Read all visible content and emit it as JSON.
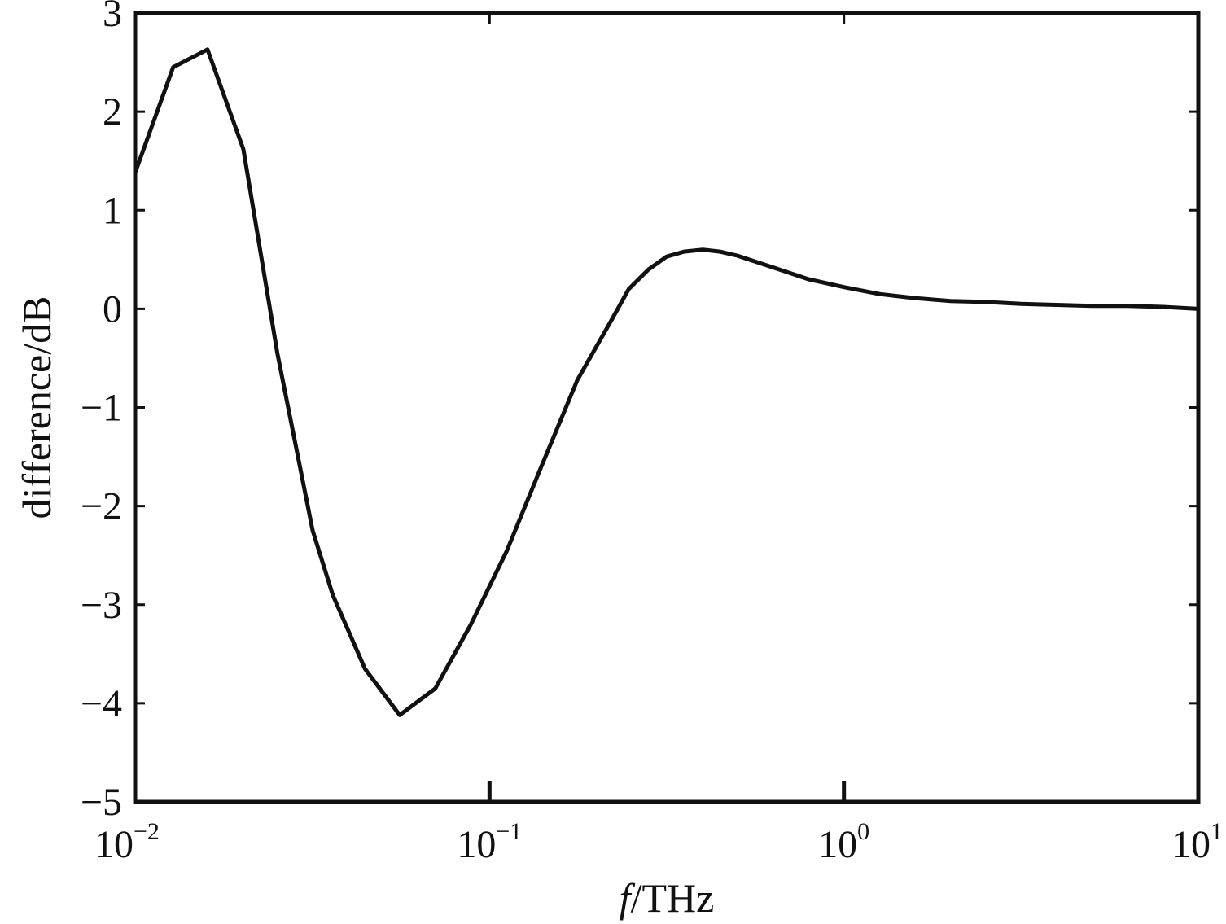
{
  "chart_data": {
    "type": "line",
    "title": "",
    "xlabel": {
      "italic": "f",
      "rest": "/THz"
    },
    "ylabel": "difference/dB",
    "x_scale": "log",
    "xlim": [
      0.01,
      10
    ],
    "ylim": [
      -5,
      3
    ],
    "x_ticks": [
      {
        "base": "10",
        "exp": "−2",
        "value": 0.01
      },
      {
        "base": "10",
        "exp": "−1",
        "value": 0.1
      },
      {
        "base": "10",
        "exp": "0",
        "value": 1
      },
      {
        "base": "10",
        "exp": "1",
        "value": 10
      }
    ],
    "y_ticks": [
      {
        "label": "3",
        "value": 3
      },
      {
        "label": "2",
        "value": 2
      },
      {
        "label": "1",
        "value": 1
      },
      {
        "label": "0",
        "value": 0
      },
      {
        "label": "−1",
        "value": -1
      },
      {
        "label": "−2",
        "value": -2
      },
      {
        "label": "−3",
        "value": -3
      },
      {
        "label": "−4",
        "value": -4
      },
      {
        "label": "−5",
        "value": -5
      }
    ],
    "grid": false,
    "line_color": "#111111",
    "series": [
      {
        "x": [
          0.01,
          0.0128,
          0.016,
          0.0202,
          0.0252,
          0.0317,
          0.0361,
          0.0445,
          0.0558,
          0.0703,
          0.0886,
          0.112,
          0.14,
          0.177,
          0.222,
          0.247,
          0.281,
          0.316,
          0.354,
          0.4,
          0.447,
          0.5,
          0.631,
          0.794,
          1.0,
          1.26,
          1.58,
          2.0,
          2.51,
          3.16,
          3.98,
          5.01,
          6.31,
          7.94,
          10.0
        ],
        "y": [
          1.38,
          2.45,
          2.63,
          1.62,
          -0.45,
          -2.25,
          -2.9,
          -3.65,
          -4.12,
          -3.85,
          -3.2,
          -2.45,
          -1.6,
          -0.72,
          -0.1,
          0.2,
          0.4,
          0.53,
          0.58,
          0.6,
          0.58,
          0.54,
          0.42,
          0.3,
          0.22,
          0.15,
          0.11,
          0.08,
          0.07,
          0.05,
          0.04,
          0.03,
          0.03,
          0.02,
          0.0
        ]
      }
    ]
  }
}
